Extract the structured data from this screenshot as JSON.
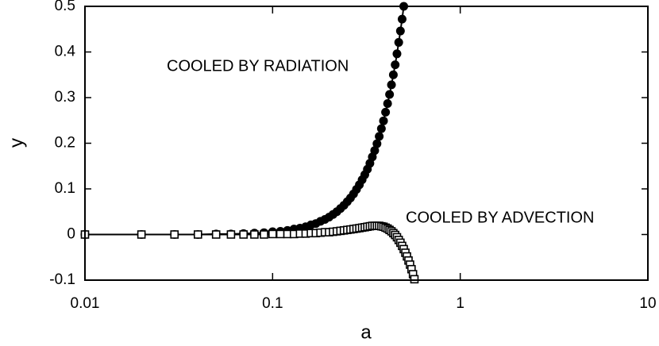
{
  "chart_data": {
    "type": "scatter",
    "x_label": "a",
    "y_label": "y",
    "xscale": "log",
    "xlim": [
      0.01,
      10
    ],
    "xticks": [
      0.01,
      0.1,
      1,
      10
    ],
    "ylim": [
      -0.1,
      0.5
    ],
    "yticks": [
      0.5,
      0.4,
      0.3,
      0.2,
      0.1,
      0,
      -0.1
    ],
    "annotations": [
      "COOLED BY RADIATION",
      "COOLED BY ADVECTION"
    ],
    "series": [
      {
        "name": "COOLED BY RADIATION",
        "color": "#000000",
        "marker": "circle",
        "x": [
          0.01,
          0.02,
          0.03,
          0.04,
          0.05,
          0.06,
          0.07,
          0.08,
          0.09,
          0.1,
          0.11,
          0.12,
          0.13,
          0.14,
          0.15,
          0.16,
          0.17,
          0.18,
          0.19,
          0.2,
          0.21,
          0.22,
          0.23,
          0.24,
          0.25,
          0.26,
          0.27,
          0.28,
          0.29,
          0.3,
          0.31,
          0.32,
          0.33,
          0.34,
          0.35,
          0.36,
          0.37,
          0.38,
          0.39,
          0.4,
          0.41,
          0.42,
          0.43,
          0.44,
          0.45,
          0.46,
          0.47,
          0.48,
          0.49,
          0.5
        ],
        "values": [
          0,
          0,
          0,
          0,
          0.001,
          0.001,
          0.002,
          0.003,
          0.004,
          0.006,
          0.007,
          0.009,
          0.012,
          0.014,
          0.017,
          0.021,
          0.024,
          0.029,
          0.033,
          0.038,
          0.044,
          0.05,
          0.057,
          0.064,
          0.072,
          0.08,
          0.089,
          0.099,
          0.109,
          0.12,
          0.131,
          0.143,
          0.156,
          0.17,
          0.184,
          0.199,
          0.215,
          0.232,
          0.249,
          0.268,
          0.287,
          0.307,
          0.328,
          0.35,
          0.372,
          0.396,
          0.421,
          0.446,
          0.472,
          0.5
        ]
      },
      {
        "name": "COOLED BY ADVECTION",
        "color": "#000000",
        "marker": "square",
        "x": [
          0.01,
          0.02,
          0.03,
          0.04,
          0.05,
          0.06,
          0.07,
          0.08,
          0.09,
          0.1,
          0.11,
          0.12,
          0.13,
          0.14,
          0.15,
          0.16,
          0.17,
          0.18,
          0.19,
          0.2,
          0.21,
          0.22,
          0.23,
          0.24,
          0.25,
          0.26,
          0.27,
          0.28,
          0.29,
          0.3,
          0.31,
          0.32,
          0.33,
          0.34,
          0.35,
          0.36,
          0.37,
          0.38,
          0.39,
          0.4,
          0.41,
          0.42,
          0.43,
          0.44,
          0.45,
          0.46,
          0.47,
          0.48,
          0.49,
          0.5,
          0.51,
          0.52,
          0.53,
          0.54,
          0.55,
          0.56,
          0.57
        ],
        "values": [
          0,
          0,
          0,
          0,
          0,
          0,
          0,
          0,
          0,
          0.001,
          0.001,
          0.001,
          0.001,
          0.002,
          0.002,
          0.003,
          0.003,
          0.004,
          0.005,
          0.005,
          0.006,
          0.007,
          0.008,
          0.009,
          0.01,
          0.011,
          0.012,
          0.013,
          0.014,
          0.015,
          0.016,
          0.017,
          0.018,
          0.019,
          0.019,
          0.019,
          0.019,
          0.018,
          0.017,
          0.015,
          0.013,
          0.01,
          0.007,
          0.003,
          -0.001,
          -0.006,
          -0.012,
          -0.018,
          -0.025,
          -0.032,
          -0.04,
          -0.048,
          -0.057,
          -0.066,
          -0.076,
          -0.087,
          -0.098
        ]
      }
    ]
  }
}
